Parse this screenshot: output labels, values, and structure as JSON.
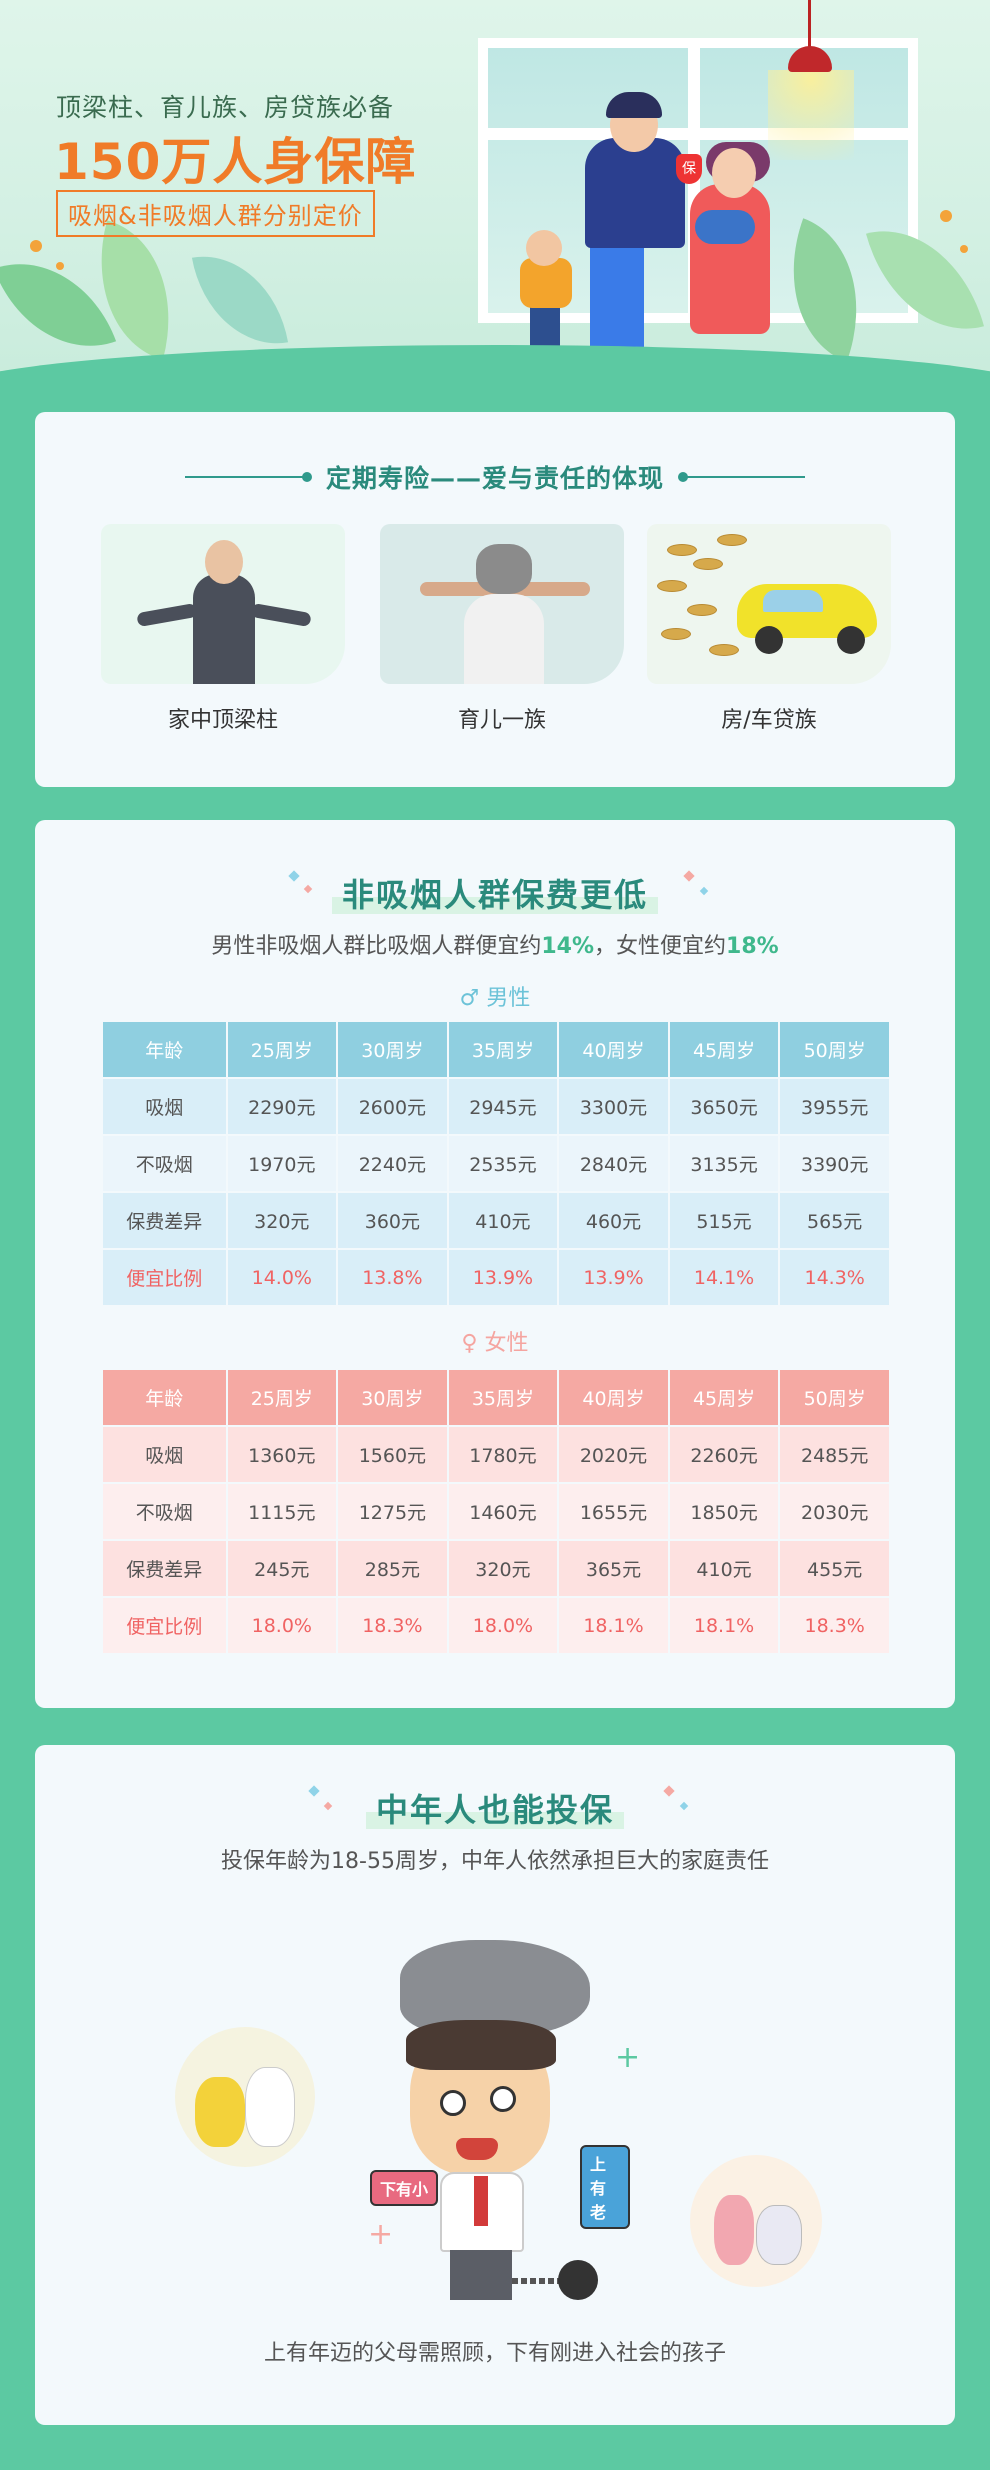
{
  "hero": {
    "tagline": "顶梁柱、育儿族、房贷族必备",
    "headline": "150万人身保障",
    "subtag": "吸烟&非吸烟人群分别定价",
    "shield_char": "保"
  },
  "section1": {
    "title": "定期寿险——爱与责任的体现",
    "tiles": [
      {
        "label": "家中顶梁柱"
      },
      {
        "label": "育儿一族"
      },
      {
        "label": "房/车贷族"
      }
    ]
  },
  "section2": {
    "title": "非吸烟人群保费更低",
    "subtitle_prefix": "男性非吸烟人群比吸烟人群便宜约",
    "male_pct": "14%",
    "subtitle_mid": "，女性便宜约",
    "female_pct": "18%",
    "male_label": "男性",
    "female_label": "女性",
    "male_icon": "♂",
    "female_icon": "♀",
    "male_table": {
      "header": [
        "年龄",
        "25周岁",
        "30周岁",
        "35周岁",
        "40周岁",
        "45周岁",
        "50周岁"
      ],
      "rows": [
        [
          "吸烟",
          "2290元",
          "2600元",
          "2945元",
          "3300元",
          "3650元",
          "3955元"
        ],
        [
          "不吸烟",
          "1970元",
          "2240元",
          "2535元",
          "2840元",
          "3135元",
          "3390元"
        ],
        [
          "保费差异",
          "320元",
          "360元",
          "410元",
          "460元",
          "515元",
          "565元"
        ],
        [
          "便宜比例",
          "14.0%",
          "13.8%",
          "13.9%",
          "13.9%",
          "14.1%",
          "14.3%"
        ]
      ]
    },
    "female_table": {
      "header": [
        "年龄",
        "25周岁",
        "30周岁",
        "35周岁",
        "40周岁",
        "45周岁",
        "50周岁"
      ],
      "rows": [
        [
          "吸烟",
          "1360元",
          "1560元",
          "1780元",
          "2020元",
          "2260元",
          "2485元"
        ],
        [
          "不吸烟",
          "1115元",
          "1275元",
          "1460元",
          "1655元",
          "1850元",
          "2030元"
        ],
        [
          "保费差异",
          "245元",
          "285元",
          "320元",
          "365元",
          "410元",
          "455元"
        ],
        [
          "便宜比例",
          "18.0%",
          "18.3%",
          "18.0%",
          "18.1%",
          "18.1%",
          "18.3%"
        ]
      ]
    }
  },
  "section3": {
    "title": "中年人也能投保",
    "subtitle": "投保年龄为18-55周岁，中年人依然承担巨大的家庭责任",
    "sign_left": "下有小",
    "sign_right": "上有老",
    "caption": "上有年迈的父母需照顾，下有刚进入社会的孩子"
  },
  "colors": {
    "background": "#5cc9a2",
    "accent_orange": "#f07b28",
    "teal_title": "#2a8a7c",
    "highlight_green": "#3fb88c",
    "male_header": "#8fcfe0",
    "female_header": "#f5a9a3",
    "pct_red": "#f06363"
  }
}
